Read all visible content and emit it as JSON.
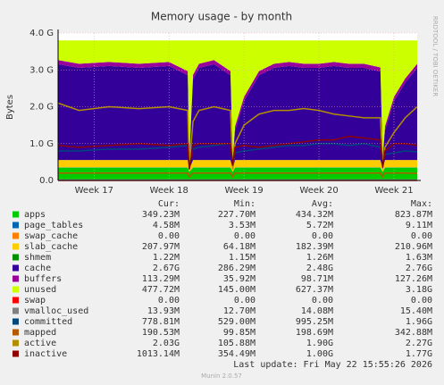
{
  "chart_data": {
    "type": "munin",
    "title": "Memory usage - by month",
    "ylabel": "Bytes",
    "side_text": "RRDTOOL / TOBI OETIKER",
    "footer": "Last update: Fri May 22 15:55:26 2026",
    "version": "Munin 2.0.57",
    "xlim": [
      16.52,
      21.31
    ],
    "xticks": [
      {
        "value": 17,
        "label": "Week 17"
      },
      {
        "value": 18,
        "label": "Week 18"
      },
      {
        "value": 19,
        "label": "Week 19"
      },
      {
        "value": 20,
        "label": "Week 20"
      },
      {
        "value": 21,
        "label": "Week 21"
      }
    ],
    "ylim": [
      0,
      4
    ],
    "yticks": [
      {
        "value": 0,
        "label": "0.0"
      },
      {
        "value": 1,
        "label": "1.0 G"
      },
      {
        "value": 2,
        "label": "2.0 G"
      },
      {
        "value": 3,
        "label": "3.0 G"
      },
      {
        "value": 4,
        "label": "4.0 G"
      }
    ],
    "grid": true,
    "x": [
      16.52,
      16.8,
      17.2,
      17.6,
      18.0,
      18.25,
      18.27,
      18.32,
      18.4,
      18.6,
      18.82,
      18.85,
      18.88,
      19.0,
      19.2,
      19.4,
      19.6,
      19.8,
      20.0,
      20.2,
      20.4,
      20.6,
      20.82,
      20.85,
      20.88,
      21.0,
      21.15,
      21.31
    ],
    "stats_header": [
      "Cur:",
      "Min:",
      "Avg:",
      "Max:"
    ],
    "series": [
      {
        "name": "apps",
        "color": "#00cc00",
        "draw": "area",
        "stats": [
          "349.23M",
          "227.70M",
          "434.32M",
          "823.87M"
        ],
        "values": [
          0.35,
          0.35,
          0.35,
          0.35,
          0.35,
          0.35,
          0.23,
          0.35,
          0.35,
          0.35,
          0.35,
          0.23,
          0.35,
          0.35,
          0.35,
          0.35,
          0.35,
          0.35,
          0.35,
          0.35,
          0.35,
          0.35,
          0.35,
          0.23,
          0.35,
          0.35,
          0.35,
          0.35
        ]
      },
      {
        "name": "page_tables",
        "color": "#0066b3",
        "draw": "area",
        "stats": [
          "4.58M",
          "3.53M",
          "5.72M",
          "9.11M"
        ],
        "values": [
          0.005,
          0.005,
          0.005,
          0.005,
          0.005,
          0.005,
          0.005,
          0.005,
          0.005,
          0.005,
          0.005,
          0.005,
          0.005,
          0.005,
          0.005,
          0.005,
          0.005,
          0.005,
          0.005,
          0.005,
          0.005,
          0.005,
          0.005,
          0.005,
          0.005,
          0.005,
          0.005,
          0.005
        ]
      },
      {
        "name": "swap_cache",
        "color": "#ff8000",
        "draw": "area",
        "stats": [
          "0.00",
          "0.00",
          "0.00",
          "0.00"
        ],
        "values": [
          0,
          0,
          0,
          0,
          0,
          0,
          0,
          0,
          0,
          0,
          0,
          0,
          0,
          0,
          0,
          0,
          0,
          0,
          0,
          0,
          0,
          0,
          0,
          0,
          0,
          0,
          0,
          0
        ]
      },
      {
        "name": "slab_cache",
        "color": "#ffcc00",
        "draw": "area",
        "stats": [
          "207.97M",
          "64.18M",
          "182.39M",
          "210.96M"
        ],
        "values": [
          0.2,
          0.2,
          0.2,
          0.2,
          0.2,
          0.2,
          0.07,
          0.2,
          0.2,
          0.2,
          0.2,
          0.07,
          0.2,
          0.2,
          0.2,
          0.2,
          0.2,
          0.2,
          0.2,
          0.2,
          0.2,
          0.2,
          0.2,
          0.07,
          0.2,
          0.2,
          0.2,
          0.2
        ]
      },
      {
        "name": "shmem",
        "color": "#008f00",
        "draw": "area",
        "stats": [
          "1.22M",
          "1.15M",
          "1.26M",
          "1.63M"
        ],
        "values": [
          0.001,
          0.001,
          0.001,
          0.001,
          0.001,
          0.001,
          0.001,
          0.001,
          0.001,
          0.001,
          0.001,
          0.001,
          0.001,
          0.001,
          0.001,
          0.001,
          0.001,
          0.001,
          0.001,
          0.001,
          0.001,
          0.001,
          0.001,
          0.001,
          0.001,
          0.001,
          0.001,
          0.001
        ]
      },
      {
        "name": "cache",
        "color": "#330099",
        "draw": "area",
        "stats": [
          "2.67G",
          "286.29M",
          "2.48G",
          "2.76G"
        ],
        "values": [
          2.6,
          2.5,
          2.55,
          2.5,
          2.55,
          2.3,
          0.3,
          2.2,
          2.5,
          2.6,
          2.3,
          0.25,
          0.8,
          1.6,
          2.3,
          2.5,
          2.55,
          2.5,
          2.5,
          2.55,
          2.5,
          2.5,
          2.4,
          0.3,
          0.8,
          1.6,
          2.1,
          2.5
        ]
      },
      {
        "name": "buffers",
        "color": "#990099",
        "draw": "area",
        "stats": [
          "113.29M",
          "35.92M",
          "98.71M",
          "127.26M"
        ],
        "values": [
          0.11,
          0.11,
          0.11,
          0.11,
          0.11,
          0.11,
          0.04,
          0.11,
          0.11,
          0.11,
          0.11,
          0.04,
          0.11,
          0.11,
          0.11,
          0.11,
          0.11,
          0.11,
          0.11,
          0.11,
          0.11,
          0.11,
          0.11,
          0.04,
          0.11,
          0.11,
          0.11,
          0.11
        ]
      },
      {
        "name": "unused",
        "color": "#ccff00",
        "draw": "area",
        "stats": [
          "477.72M",
          "145.00M",
          "627.37M",
          "3.18G"
        ],
        "values": [
          0.534,
          0.634,
          0.584,
          0.634,
          0.584,
          0.834,
          3.154,
          0.934,
          0.634,
          0.534,
          0.834,
          3.204,
          2.334,
          1.534,
          0.834,
          0.634,
          0.584,
          0.634,
          0.634,
          0.584,
          0.634,
          0.634,
          0.734,
          3.154,
          2.334,
          1.534,
          1.034,
          0.634
        ]
      },
      {
        "name": "swap",
        "color": "#ff0000",
        "draw": "line",
        "stats": [
          "0.00",
          "0.00",
          "0.00",
          "0.00"
        ],
        "values": [
          0,
          0,
          0,
          0,
          0,
          0,
          0,
          0,
          0,
          0,
          0,
          0,
          0,
          0,
          0,
          0,
          0,
          0,
          0,
          0,
          0,
          0,
          0,
          0,
          0,
          0,
          0,
          0
        ]
      },
      {
        "name": "vmalloc_used",
        "color": "#808080",
        "draw": "line",
        "stats": [
          "13.93M",
          "12.70M",
          "14.08M",
          "15.40M"
        ],
        "values": [
          0.014,
          0.014,
          0.014,
          0.014,
          0.014,
          0.014,
          0.014,
          0.014,
          0.014,
          0.014,
          0.014,
          0.014,
          0.014,
          0.014,
          0.014,
          0.014,
          0.014,
          0.014,
          0.014,
          0.014,
          0.014,
          0.014,
          0.014,
          0.014,
          0.014,
          0.014,
          0.014,
          0.014
        ]
      },
      {
        "name": "committed",
        "color": "#00487d",
        "draw": "line",
        "stats": [
          "778.81M",
          "529.00M",
          "995.25M",
          "1.96G"
        ],
        "values": [
          0.8,
          0.8,
          0.85,
          0.85,
          0.9,
          0.95,
          0.5,
          0.85,
          0.9,
          0.95,
          1.0,
          0.55,
          0.75,
          0.8,
          0.85,
          0.9,
          0.95,
          0.95,
          1.0,
          1.0,
          0.95,
          1.0,
          0.9,
          0.55,
          0.7,
          0.75,
          0.8,
          0.78
        ]
      },
      {
        "name": "mapped",
        "color": "#b35a00",
        "draw": "line",
        "stats": [
          "190.53M",
          "99.85M",
          "198.69M",
          "342.88M"
        ],
        "values": [
          0.2,
          0.2,
          0.2,
          0.2,
          0.2,
          0.2,
          0.1,
          0.2,
          0.2,
          0.2,
          0.2,
          0.1,
          0.2,
          0.2,
          0.2,
          0.2,
          0.2,
          0.2,
          0.2,
          0.2,
          0.2,
          0.2,
          0.2,
          0.1,
          0.2,
          0.2,
          0.2,
          0.19
        ]
      },
      {
        "name": "active",
        "color": "#b38f00",
        "draw": "line",
        "stats": [
          "2.03G",
          "105.88M",
          "1.90G",
          "2.27G"
        ],
        "values": [
          2.1,
          1.9,
          2.0,
          1.95,
          2.0,
          1.9,
          0.4,
          1.6,
          1.9,
          2.0,
          1.9,
          0.3,
          1.0,
          1.5,
          1.8,
          1.9,
          1.9,
          1.95,
          1.9,
          1.8,
          1.75,
          1.7,
          1.7,
          0.4,
          0.9,
          1.3,
          1.7,
          2.0
        ]
      },
      {
        "name": "inactive",
        "color": "#8f0000",
        "draw": "line",
        "stats": [
          "1013.14M",
          "354.49M",
          "1.00G",
          "1.77G"
        ],
        "values": [
          0.95,
          0.9,
          0.95,
          1.0,
          0.95,
          1.0,
          0.3,
          0.95,
          1.0,
          1.0,
          1.0,
          0.4,
          0.9,
          0.95,
          0.9,
          0.95,
          1.0,
          1.05,
          1.1,
          1.1,
          1.2,
          1.15,
          1.1,
          0.35,
          0.8,
          1.0,
          1.0,
          0.95
        ]
      }
    ]
  }
}
